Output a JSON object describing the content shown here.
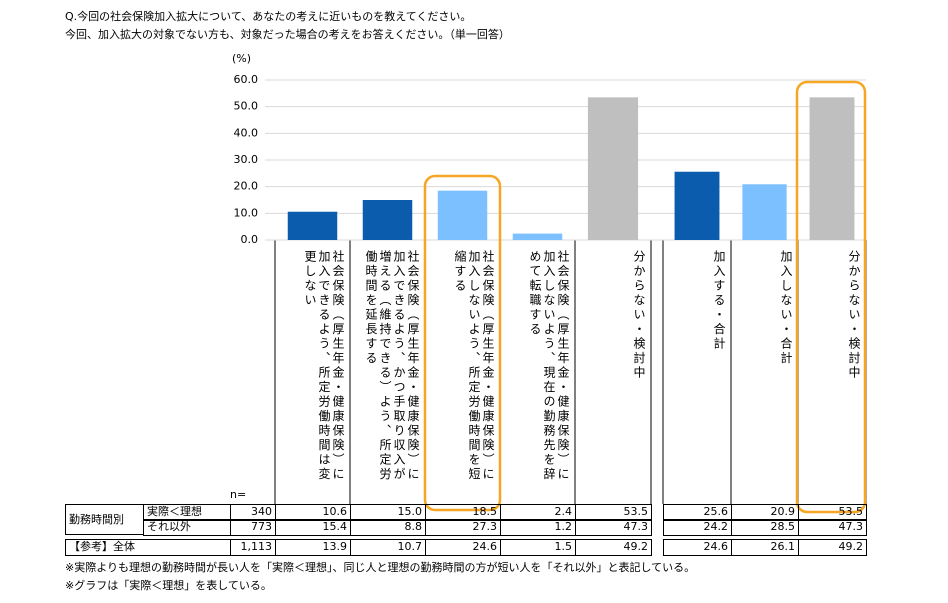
{
  "header": {
    "question": "Q.今回の社会保険加入拡大について、あなたの考えに近いものを教えてください。",
    "instruction": "今回、加入拡大の対象でない方も、対象だった場合の考えをお答えください。（単一回答）"
  },
  "chart_data": {
    "type": "bar",
    "unit": "(%)",
    "categories": [
      "社会保険（厚生年金・健康保険）に加入できるよう、所定労働時間は変更しない",
      "社会保険（厚生年金・健康保険）に加入できるよう、かつ手取り収入が増える（維持できる）よう、所定労働時間を延長する",
      "社会保険（厚生年金・健康保険）に加入しないよう、所定労働時間を短縮する",
      "社会保険（厚生年金・健康保険）に加入しないよう、現在の勤務先を辞めて転職する",
      "分からない・検討中",
      "加入する・合計",
      "加入しない・合計",
      "分からない・検討中"
    ],
    "values": [
      10.6,
      15.0,
      18.5,
      2.4,
      53.5,
      25.6,
      20.9,
      53.5
    ],
    "colors": [
      "#0b5cad",
      "#0b5cad",
      "#7cc0ff",
      "#7cc0ff",
      "#bfbfbf",
      "#0b5cad",
      "#7cc0ff",
      "#bfbfbf"
    ],
    "ylim": [
      0,
      60
    ],
    "yticks": [
      {
        "value": 0,
        "label": "0.0"
      },
      {
        "value": 10,
        "label": "10.0"
      },
      {
        "value": 20,
        "label": "20.0"
      },
      {
        "value": 30,
        "label": "30.0"
      },
      {
        "value": 40,
        "label": "40.0"
      },
      {
        "value": 50,
        "label": "50.0"
      },
      {
        "value": 60,
        "label": "60.0"
      }
    ],
    "grid": true
  },
  "table": {
    "n_label": "n=",
    "group_label": "勤務時間別",
    "rows": [
      {
        "label": "実際＜理想",
        "n": "340",
        "cells": [
          "10.6",
          "15.0",
          "18.5",
          "2.4",
          "53.5",
          "25.6",
          "20.9",
          "53.5"
        ]
      },
      {
        "label": "それ以外",
        "n": "773",
        "cells": [
          "15.4",
          "8.8",
          "27.3",
          "1.2",
          "47.3",
          "24.2",
          "28.5",
          "47.3"
        ]
      },
      {
        "label": "【参考】全体",
        "n": "1,113",
        "cells": [
          "13.9",
          "10.7",
          "24.6",
          "1.5",
          "49.2",
          "24.6",
          "26.1",
          "49.2"
        ]
      }
    ]
  },
  "notes": [
    "※実際よりも理想の勤務時間が長い人を「実際＜理想」、同じ人と理想の勤務時間の方が短い人を「それ以外」と表記している。",
    "※グラフは「実際＜理想」を表している。"
  ]
}
